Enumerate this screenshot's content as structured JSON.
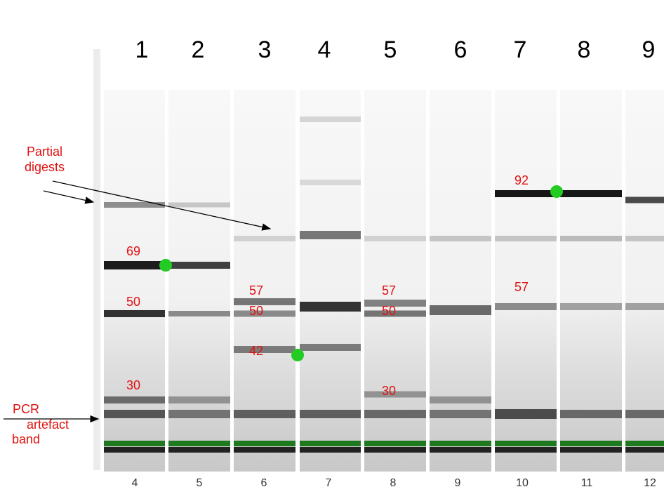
{
  "lane_numbers": [
    "1",
    "2",
    "3",
    "4",
    "5",
    "6",
    "7",
    "8",
    "9"
  ],
  "well_numbers": [
    "4",
    "5",
    "6",
    "7",
    "8",
    "9",
    "10",
    "11",
    "12"
  ],
  "size_labels": {
    "lane1_69": "69",
    "lane1_50": "50",
    "lane1_30": "30",
    "lane3_57": "57",
    "lane3_50": "50",
    "lane3_42": "42",
    "lane5_57": "57",
    "lane5_50": "50",
    "lane5_30": "30",
    "lane7_92": "92",
    "lane7_57": "57"
  },
  "annotations": {
    "partial_line1": "Partial",
    "partial_line2": "digests",
    "pcr_line1": "PCR",
    "pcr_line2": "artefact",
    "pcr_line3": "band"
  },
  "colors": {
    "label_red": "#e11010",
    "marker_green": "#22cc22",
    "gel_background": "#f2f2f2",
    "band_dark": "#101010",
    "loading_front_green": "#1f7a1f"
  }
}
